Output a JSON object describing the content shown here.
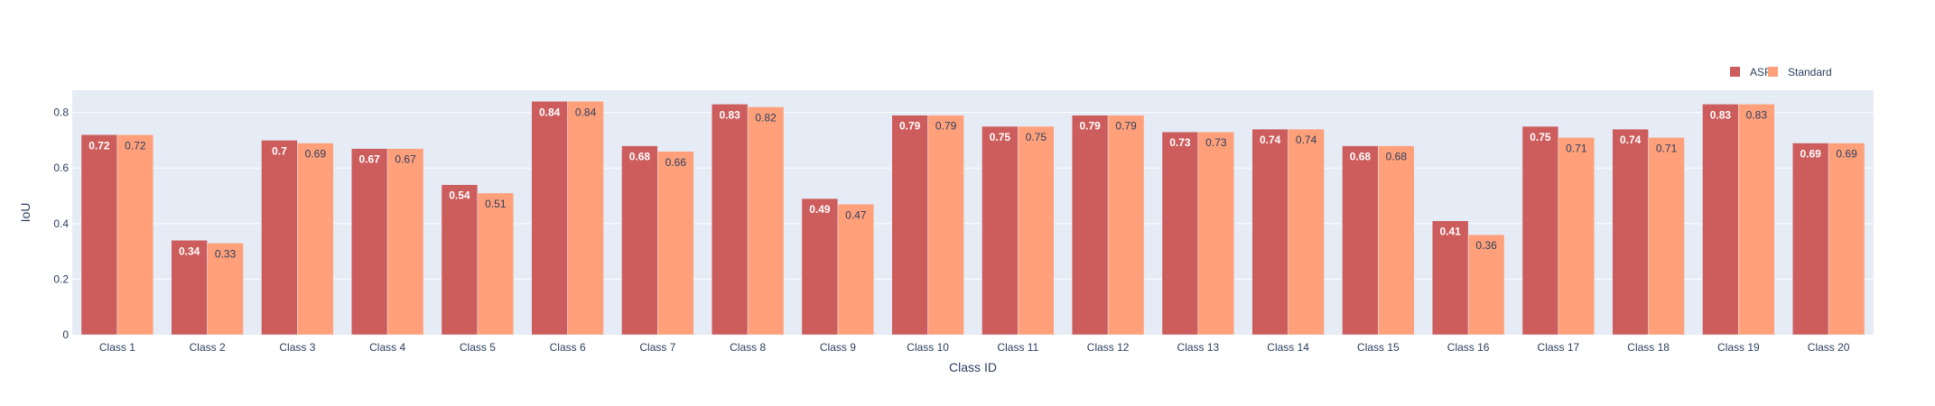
{
  "chart_data": {
    "type": "bar",
    "title": "",
    "xlabel": "Class ID",
    "ylabel": "IoU",
    "ylim": [
      0,
      0.88
    ],
    "yticks": [
      0,
      0.2,
      0.4,
      0.6,
      0.8
    ],
    "grid": true,
    "legend_position": "top-right",
    "categories": [
      "Class 1",
      "Class 2",
      "Class 3",
      "Class 4",
      "Class 5",
      "Class 6",
      "Class 7",
      "Class 8",
      "Class 9",
      "Class 10",
      "Class 11",
      "Class 12",
      "Class 13",
      "Class 14",
      "Class 15",
      "Class 16",
      "Class 17",
      "Class 18",
      "Class 19",
      "Class 20"
    ],
    "series": [
      {
        "name": "ASR",
        "color": "#cd5c5c",
        "values": [
          0.72,
          0.34,
          0.7,
          0.67,
          0.54,
          0.84,
          0.68,
          0.83,
          0.49,
          0.79,
          0.75,
          0.79,
          0.73,
          0.74,
          0.68,
          0.41,
          0.75,
          0.74,
          0.83,
          0.69
        ],
        "labels": [
          "0.72",
          "0.34",
          "0.7",
          "0.67",
          "0.54",
          "0.84",
          "0.68",
          "0.83",
          "0.49",
          "0.79",
          "0.75",
          "0.79",
          "0.73",
          "0.74",
          "0.68",
          "0.41",
          "0.75",
          "0.74",
          "0.83",
          "0.69"
        ]
      },
      {
        "name": "Standard",
        "color": "#ffa07a",
        "values": [
          0.72,
          0.33,
          0.69,
          0.67,
          0.51,
          0.84,
          0.66,
          0.82,
          0.47,
          0.79,
          0.75,
          0.79,
          0.73,
          0.74,
          0.68,
          0.36,
          0.71,
          0.71,
          0.83,
          0.69
        ],
        "labels": [
          "0.72",
          "0.33",
          "0.69",
          "0.67",
          "0.51",
          "0.84",
          "0.66",
          "0.82",
          "0.47",
          "0.79",
          "0.75",
          "0.79",
          "0.73",
          "0.74",
          "0.68",
          "0.36",
          "0.71",
          "0.71",
          "0.83",
          "0.69"
        ]
      }
    ]
  },
  "colors": {
    "plot_background": "#e5ecf6",
    "gridline": "#ffffff",
    "text": "#2a3f5f"
  }
}
